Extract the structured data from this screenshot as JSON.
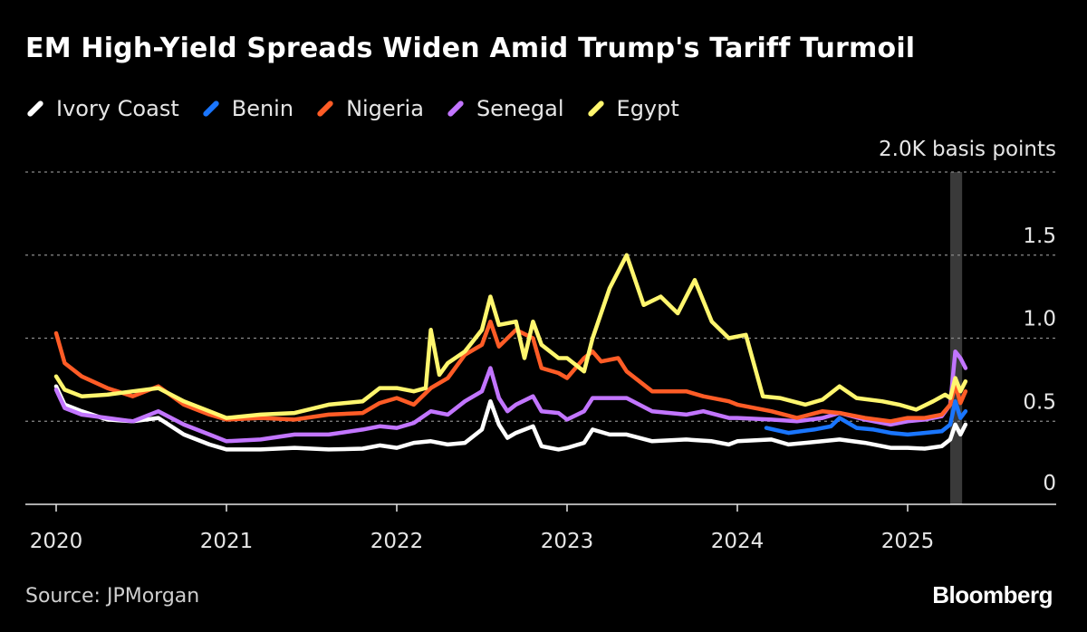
{
  "title": "EM High-Yield Spreads Widen Amid Trump's Tariff Turmoil",
  "source": "Source: JPMorgan",
  "brand": "Bloomberg",
  "chart_data": {
    "type": "line",
    "ylabel": "2.0K basis points",
    "ylim": [
      0,
      2000
    ],
    "yticks": [
      {
        "value": 0,
        "label": "0"
      },
      {
        "value": 500,
        "label": "0.5"
      },
      {
        "value": 1000,
        "label": "1.0"
      },
      {
        "value": 1500,
        "label": "1.5"
      },
      {
        "value": 2000,
        "label": "2.0K basis points"
      }
    ],
    "xlim": [
      2020.0,
      2025.8
    ],
    "xticks": [
      {
        "value": 2020,
        "label": "2020"
      },
      {
        "value": 2021,
        "label": "2021"
      },
      {
        "value": 2022,
        "label": "2022"
      },
      {
        "value": 2023,
        "label": "2023"
      },
      {
        "value": 2024,
        "label": "2024"
      },
      {
        "value": 2025,
        "label": "2025"
      }
    ],
    "highlight": {
      "from": 2025.25,
      "to": 2025.32
    },
    "grid": true,
    "legend_position": "top-left",
    "series": [
      {
        "name": "Ivory Coast",
        "color": "#ffffff",
        "points": [
          [
            2020.0,
            710
          ],
          [
            2020.05,
            600
          ],
          [
            2020.15,
            560
          ],
          [
            2020.3,
            510
          ],
          [
            2020.45,
            500
          ],
          [
            2020.6,
            520
          ],
          [
            2020.75,
            420
          ],
          [
            2020.9,
            360
          ],
          [
            2021.0,
            330
          ],
          [
            2021.2,
            330
          ],
          [
            2021.4,
            340
          ],
          [
            2021.6,
            330
          ],
          [
            2021.8,
            335
          ],
          [
            2021.9,
            355
          ],
          [
            2022.0,
            340
          ],
          [
            2022.1,
            370
          ],
          [
            2022.2,
            380
          ],
          [
            2022.3,
            360
          ],
          [
            2022.4,
            370
          ],
          [
            2022.5,
            450
          ],
          [
            2022.55,
            620
          ],
          [
            2022.6,
            480
          ],
          [
            2022.65,
            400
          ],
          [
            2022.7,
            430
          ],
          [
            2022.8,
            470
          ],
          [
            2022.85,
            350
          ],
          [
            2022.95,
            330
          ],
          [
            2023.0,
            340
          ],
          [
            2023.1,
            370
          ],
          [
            2023.15,
            450
          ],
          [
            2023.25,
            420
          ],
          [
            2023.35,
            420
          ],
          [
            2023.5,
            380
          ],
          [
            2023.7,
            390
          ],
          [
            2023.85,
            380
          ],
          [
            2023.95,
            360
          ],
          [
            2024.0,
            380
          ],
          [
            2024.2,
            390
          ],
          [
            2024.3,
            360
          ],
          [
            2024.5,
            380
          ],
          [
            2024.6,
            390
          ],
          [
            2024.75,
            370
          ],
          [
            2024.9,
            340
          ],
          [
            2025.0,
            340
          ],
          [
            2025.1,
            335
          ],
          [
            2025.2,
            350
          ],
          [
            2025.25,
            390
          ],
          [
            2025.28,
            480
          ],
          [
            2025.31,
            420
          ],
          [
            2025.34,
            480
          ]
        ]
      },
      {
        "name": "Benin",
        "color": "#1a76ff",
        "points": [
          [
            2024.17,
            460
          ],
          [
            2024.3,
            430
          ],
          [
            2024.45,
            450
          ],
          [
            2024.55,
            470
          ],
          [
            2024.6,
            520
          ],
          [
            2024.7,
            460
          ],
          [
            2024.8,
            450
          ],
          [
            2024.9,
            430
          ],
          [
            2025.0,
            420
          ],
          [
            2025.1,
            430
          ],
          [
            2025.2,
            440
          ],
          [
            2025.25,
            480
          ],
          [
            2025.28,
            620
          ],
          [
            2025.31,
            520
          ],
          [
            2025.34,
            560
          ]
        ]
      },
      {
        "name": "Nigeria",
        "color": "#ff5c26",
        "points": [
          [
            2020.0,
            1030
          ],
          [
            2020.05,
            850
          ],
          [
            2020.15,
            770
          ],
          [
            2020.3,
            700
          ],
          [
            2020.45,
            650
          ],
          [
            2020.6,
            710
          ],
          [
            2020.75,
            600
          ],
          [
            2020.9,
            540
          ],
          [
            2021.0,
            510
          ],
          [
            2021.2,
            520
          ],
          [
            2021.4,
            510
          ],
          [
            2021.6,
            540
          ],
          [
            2021.8,
            550
          ],
          [
            2021.9,
            610
          ],
          [
            2022.0,
            640
          ],
          [
            2022.1,
            600
          ],
          [
            2022.2,
            700
          ],
          [
            2022.3,
            760
          ],
          [
            2022.4,
            900
          ],
          [
            2022.5,
            960
          ],
          [
            2022.55,
            1100
          ],
          [
            2022.6,
            950
          ],
          [
            2022.7,
            1050
          ],
          [
            2022.8,
            1000
          ],
          [
            2022.85,
            820
          ],
          [
            2022.95,
            790
          ],
          [
            2023.0,
            760
          ],
          [
            2023.1,
            880
          ],
          [
            2023.15,
            920
          ],
          [
            2023.2,
            860
          ],
          [
            2023.3,
            880
          ],
          [
            2023.35,
            800
          ],
          [
            2023.5,
            680
          ],
          [
            2023.7,
            680
          ],
          [
            2023.8,
            650
          ],
          [
            2023.95,
            620
          ],
          [
            2024.0,
            600
          ],
          [
            2024.2,
            560
          ],
          [
            2024.35,
            520
          ],
          [
            2024.5,
            560
          ],
          [
            2024.6,
            550
          ],
          [
            2024.75,
            520
          ],
          [
            2024.9,
            500
          ],
          [
            2025.0,
            520
          ],
          [
            2025.1,
            520
          ],
          [
            2025.2,
            540
          ],
          [
            2025.25,
            600
          ],
          [
            2025.28,
            720
          ],
          [
            2025.31,
            610
          ],
          [
            2025.34,
            680
          ]
        ]
      },
      {
        "name": "Senegal",
        "color": "#c275ff",
        "points": [
          [
            2020.0,
            690
          ],
          [
            2020.05,
            580
          ],
          [
            2020.15,
            540
          ],
          [
            2020.3,
            520
          ],
          [
            2020.45,
            500
          ],
          [
            2020.6,
            560
          ],
          [
            2020.75,
            480
          ],
          [
            2020.9,
            420
          ],
          [
            2021.0,
            380
          ],
          [
            2021.2,
            390
          ],
          [
            2021.4,
            420
          ],
          [
            2021.6,
            420
          ],
          [
            2021.8,
            450
          ],
          [
            2021.9,
            470
          ],
          [
            2022.0,
            460
          ],
          [
            2022.1,
            490
          ],
          [
            2022.2,
            560
          ],
          [
            2022.3,
            540
          ],
          [
            2022.4,
            620
          ],
          [
            2022.5,
            680
          ],
          [
            2022.55,
            820
          ],
          [
            2022.6,
            640
          ],
          [
            2022.65,
            560
          ],
          [
            2022.7,
            600
          ],
          [
            2022.8,
            650
          ],
          [
            2022.85,
            560
          ],
          [
            2022.95,
            550
          ],
          [
            2023.0,
            510
          ],
          [
            2023.1,
            560
          ],
          [
            2023.15,
            640
          ],
          [
            2023.25,
            640
          ],
          [
            2023.35,
            640
          ],
          [
            2023.5,
            560
          ],
          [
            2023.7,
            540
          ],
          [
            2023.8,
            560
          ],
          [
            2023.95,
            520
          ],
          [
            2024.0,
            520
          ],
          [
            2024.2,
            510
          ],
          [
            2024.35,
            500
          ],
          [
            2024.5,
            520
          ],
          [
            2024.6,
            550
          ],
          [
            2024.75,
            510
          ],
          [
            2024.9,
            480
          ],
          [
            2025.0,
            500
          ],
          [
            2025.1,
            510
          ],
          [
            2025.2,
            530
          ],
          [
            2025.25,
            600
          ],
          [
            2025.28,
            920
          ],
          [
            2025.31,
            880
          ],
          [
            2025.34,
            820
          ]
        ]
      },
      {
        "name": "Egypt",
        "color": "#fff66e",
        "points": [
          [
            2020.0,
            770
          ],
          [
            2020.05,
            690
          ],
          [
            2020.15,
            650
          ],
          [
            2020.3,
            660
          ],
          [
            2020.45,
            680
          ],
          [
            2020.6,
            700
          ],
          [
            2020.75,
            620
          ],
          [
            2020.9,
            560
          ],
          [
            2021.0,
            520
          ],
          [
            2021.2,
            540
          ],
          [
            2021.4,
            550
          ],
          [
            2021.6,
            600
          ],
          [
            2021.8,
            620
          ],
          [
            2021.9,
            700
          ],
          [
            2022.0,
            700
          ],
          [
            2022.1,
            680
          ],
          [
            2022.17,
            700
          ],
          [
            2022.2,
            1050
          ],
          [
            2022.25,
            780
          ],
          [
            2022.3,
            850
          ],
          [
            2022.4,
            920
          ],
          [
            2022.5,
            1050
          ],
          [
            2022.55,
            1250
          ],
          [
            2022.6,
            1080
          ],
          [
            2022.7,
            1100
          ],
          [
            2022.75,
            880
          ],
          [
            2022.8,
            1100
          ],
          [
            2022.85,
            960
          ],
          [
            2022.95,
            880
          ],
          [
            2023.0,
            880
          ],
          [
            2023.1,
            800
          ],
          [
            2023.15,
            1000
          ],
          [
            2023.25,
            1300
          ],
          [
            2023.35,
            1500
          ],
          [
            2023.45,
            1200
          ],
          [
            2023.55,
            1250
          ],
          [
            2023.65,
            1150
          ],
          [
            2023.75,
            1350
          ],
          [
            2023.85,
            1100
          ],
          [
            2023.95,
            1000
          ],
          [
            2024.05,
            1020
          ],
          [
            2024.15,
            650
          ],
          [
            2024.25,
            640
          ],
          [
            2024.4,
            600
          ],
          [
            2024.5,
            630
          ],
          [
            2024.6,
            710
          ],
          [
            2024.7,
            640
          ],
          [
            2024.85,
            620
          ],
          [
            2024.95,
            600
          ],
          [
            2025.05,
            570
          ],
          [
            2025.15,
            620
          ],
          [
            2025.22,
            660
          ],
          [
            2025.25,
            640
          ],
          [
            2025.28,
            760
          ],
          [
            2025.31,
            680
          ],
          [
            2025.34,
            740
          ]
        ]
      }
    ]
  }
}
